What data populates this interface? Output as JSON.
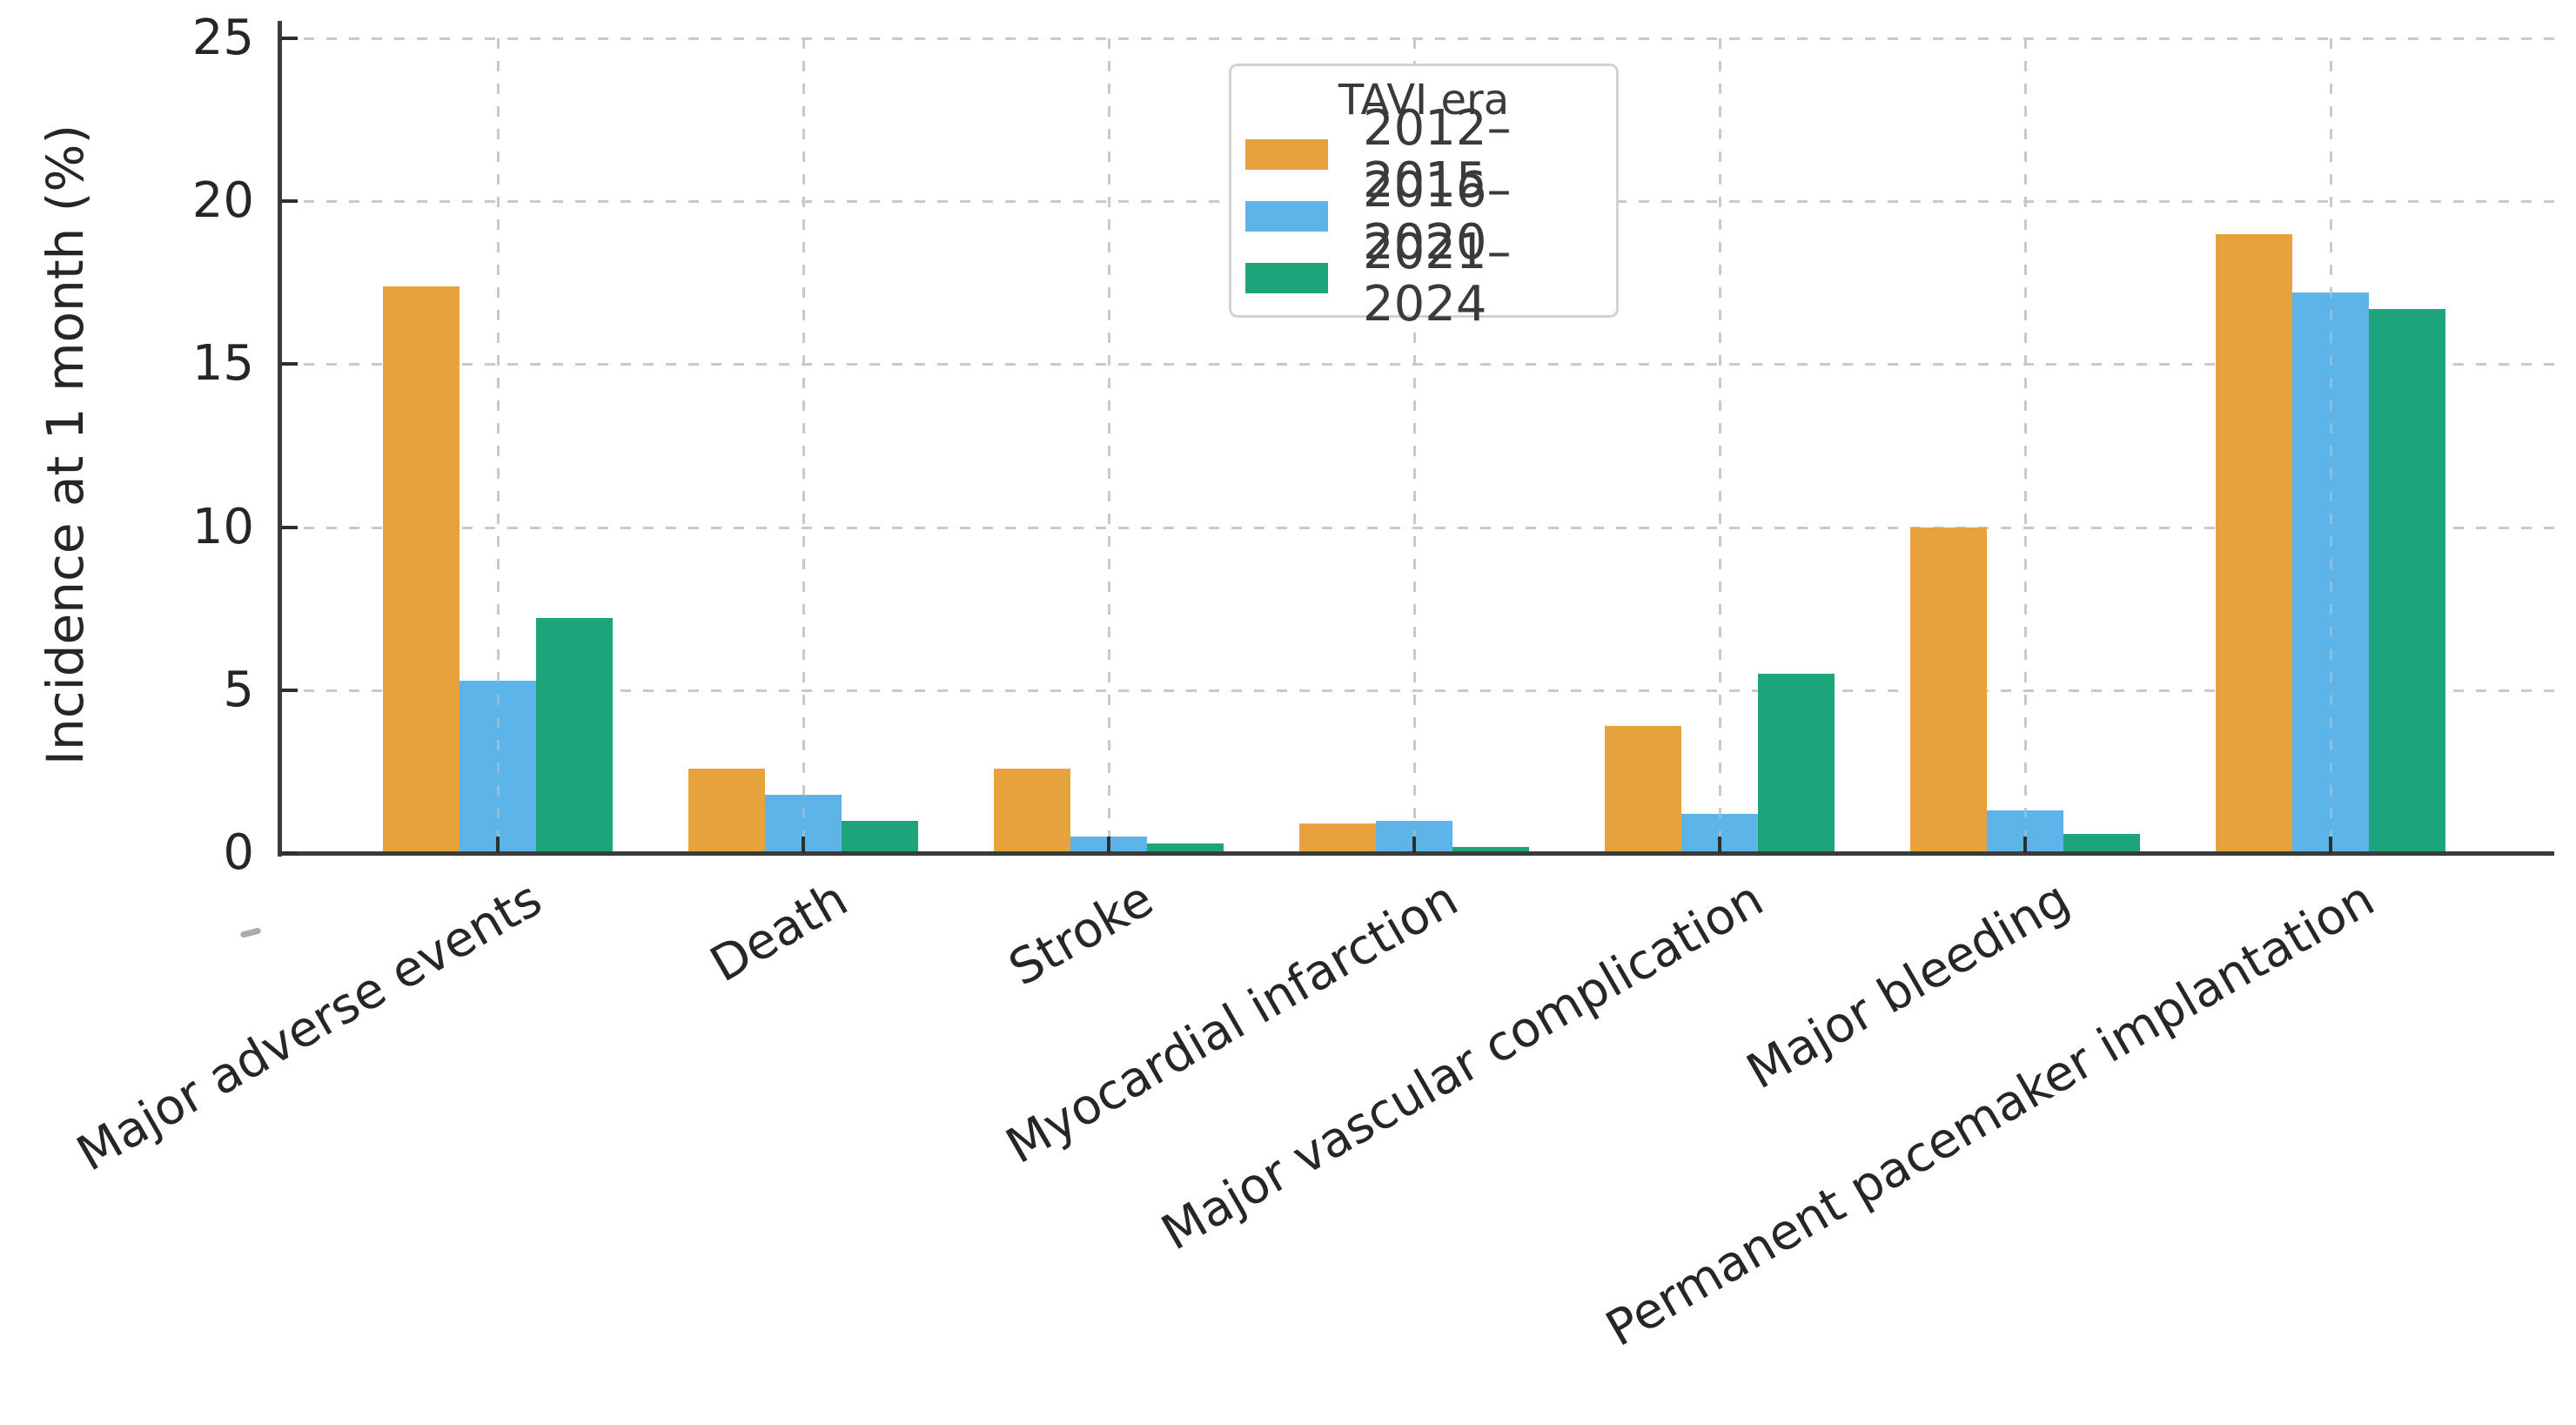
{
  "chart_data": {
    "type": "bar",
    "title": "",
    "ylabel": "Incidence at 1 month (%)",
    "xlabel": "",
    "ylim": [
      0,
      25
    ],
    "yticks": [
      0,
      5,
      10,
      15,
      20,
      25
    ],
    "grid": {
      "horizontal": true,
      "vertical": true,
      "style": "dashed",
      "color": "#c9c9c9"
    },
    "legend": {
      "title": "TAVI era",
      "position": "upper center"
    },
    "categories": [
      "Major adverse events",
      "Death",
      "Stroke",
      "Myocardial infarction",
      "Major vascular complication",
      "Major bleeding",
      "Permanent pacemaker implantation"
    ],
    "series": [
      {
        "name": "2012–2015",
        "color": "#E6A23C",
        "values": [
          17.4,
          2.6,
          2.6,
          0.9,
          3.9,
          10.0,
          19.0
        ]
      },
      {
        "name": "2016–2020",
        "color": "#5CB5E6",
        "values": [
          5.3,
          1.8,
          0.5,
          1.0,
          1.2,
          1.3,
          17.2
        ]
      },
      {
        "name": "2021–2024",
        "color": "#1EA47B",
        "values": [
          7.2,
          1.0,
          0.3,
          0.2,
          5.5,
          0.6,
          16.7
        ]
      }
    ],
    "axis_color": "#3b3b3b",
    "text_color": "#262626",
    "background": "#ffffff"
  }
}
